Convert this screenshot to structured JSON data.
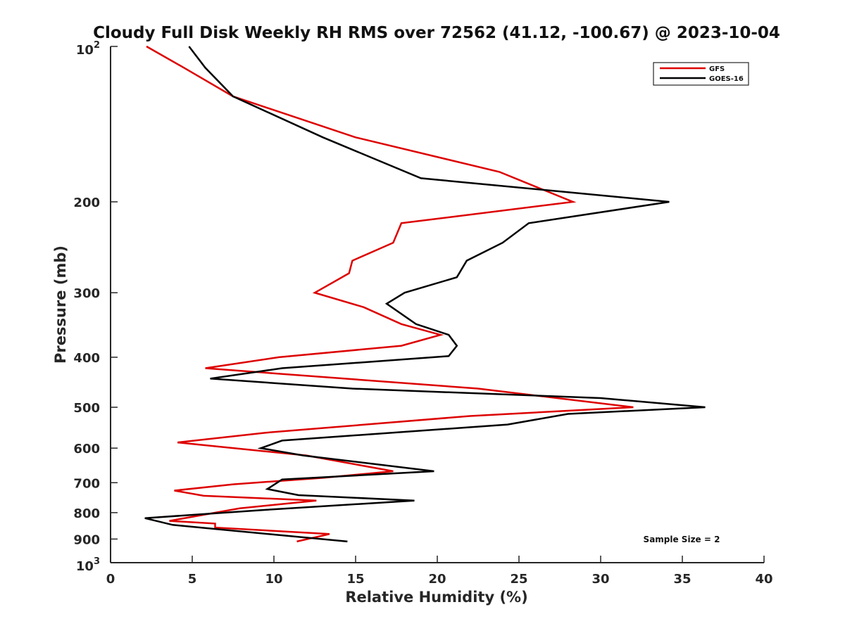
{
  "chart_data": {
    "type": "line",
    "title": "Cloudy Full Disk Weekly RH RMS over 72562 (41.12, -100.67) @ 2023-10-04",
    "xlabel": "Relative Humidity (%)",
    "ylabel": "Pressure (mb)",
    "xlim": [
      0,
      40
    ],
    "ylim": [
      100,
      1000
    ],
    "y_scale": "log",
    "y_reversed": true,
    "grid": false,
    "legend_position": "top-right",
    "x_ticks": [
      "0",
      "5",
      "10",
      "15",
      "20",
      "25",
      "30",
      "35",
      "40"
    ],
    "y_ticks": [
      {
        "value": 100,
        "base": "10",
        "exp": "2"
      },
      {
        "value": 200,
        "label": "200"
      },
      {
        "value": 300,
        "label": "300"
      },
      {
        "value": 400,
        "label": "400"
      },
      {
        "value": 500,
        "label": "500"
      },
      {
        "value": 600,
        "label": "600"
      },
      {
        "value": 700,
        "label": "700"
      },
      {
        "value": 800,
        "label": "800"
      },
      {
        "value": 900,
        "label": "900"
      },
      {
        "value": 1000,
        "base": "10",
        "exp": "3"
      }
    ],
    "annotation": "Sample Size = 2",
    "series": [
      {
        "name": "GFS",
        "color": "#dd0000",
        "points": [
          {
            "x": 2.2,
            "y": 100
          },
          {
            "x": 4.5,
            "y": 110
          },
          {
            "x": 7.5,
            "y": 125
          },
          {
            "x": 15.0,
            "y": 150
          },
          {
            "x": 23.8,
            "y": 175
          },
          {
            "x": 28.3,
            "y": 200
          },
          {
            "x": 17.8,
            "y": 220
          },
          {
            "x": 17.3,
            "y": 240
          },
          {
            "x": 14.8,
            "y": 260
          },
          {
            "x": 14.6,
            "y": 275
          },
          {
            "x": 12.5,
            "y": 300
          },
          {
            "x": 15.5,
            "y": 320
          },
          {
            "x": 17.8,
            "y": 345
          },
          {
            "x": 20.2,
            "y": 362
          },
          {
            "x": 17.8,
            "y": 380
          },
          {
            "x": 10.3,
            "y": 400
          },
          {
            "x": 5.8,
            "y": 420
          },
          {
            "x": 22.5,
            "y": 460
          },
          {
            "x": 32.0,
            "y": 500
          },
          {
            "x": 22.0,
            "y": 520
          },
          {
            "x": 9.5,
            "y": 560
          },
          {
            "x": 4.1,
            "y": 585
          },
          {
            "x": 12.0,
            "y": 620
          },
          {
            "x": 17.3,
            "y": 665
          },
          {
            "x": 13.0,
            "y": 685
          },
          {
            "x": 7.5,
            "y": 705
          },
          {
            "x": 3.9,
            "y": 725
          },
          {
            "x": 5.7,
            "y": 742
          },
          {
            "x": 12.6,
            "y": 758
          },
          {
            "x": 7.9,
            "y": 785
          },
          {
            "x": 3.6,
            "y": 830
          },
          {
            "x": 6.4,
            "y": 840
          },
          {
            "x": 6.4,
            "y": 855
          },
          {
            "x": 13.4,
            "y": 880
          },
          {
            "x": 11.4,
            "y": 910
          }
        ]
      },
      {
        "name": "GOES-16",
        "color": "#000000",
        "points": [
          {
            "x": 4.8,
            "y": 100
          },
          {
            "x": 5.8,
            "y": 110
          },
          {
            "x": 7.5,
            "y": 125
          },
          {
            "x": 13.0,
            "y": 150
          },
          {
            "x": 19.0,
            "y": 180
          },
          {
            "x": 34.2,
            "y": 200
          },
          {
            "x": 25.6,
            "y": 220
          },
          {
            "x": 24.0,
            "y": 240
          },
          {
            "x": 21.8,
            "y": 260
          },
          {
            "x": 21.2,
            "y": 280
          },
          {
            "x": 18.0,
            "y": 300
          },
          {
            "x": 16.9,
            "y": 315
          },
          {
            "x": 18.7,
            "y": 345
          },
          {
            "x": 20.7,
            "y": 362
          },
          {
            "x": 21.2,
            "y": 380
          },
          {
            "x": 20.7,
            "y": 398
          },
          {
            "x": 10.5,
            "y": 420
          },
          {
            "x": 6.1,
            "y": 440
          },
          {
            "x": 14.8,
            "y": 460
          },
          {
            "x": 30.0,
            "y": 480
          },
          {
            "x": 36.4,
            "y": 500
          },
          {
            "x": 28.0,
            "y": 515
          },
          {
            "x": 24.3,
            "y": 540
          },
          {
            "x": 10.5,
            "y": 580
          },
          {
            "x": 9.2,
            "y": 600
          },
          {
            "x": 11.8,
            "y": 620
          },
          {
            "x": 19.8,
            "y": 665
          },
          {
            "x": 10.5,
            "y": 690
          },
          {
            "x": 9.6,
            "y": 720
          },
          {
            "x": 11.5,
            "y": 740
          },
          {
            "x": 18.6,
            "y": 758
          },
          {
            "x": 9.5,
            "y": 790
          },
          {
            "x": 2.1,
            "y": 820
          },
          {
            "x": 3.8,
            "y": 845
          },
          {
            "x": 6.3,
            "y": 860
          },
          {
            "x": 14.5,
            "y": 910
          }
        ]
      }
    ]
  }
}
